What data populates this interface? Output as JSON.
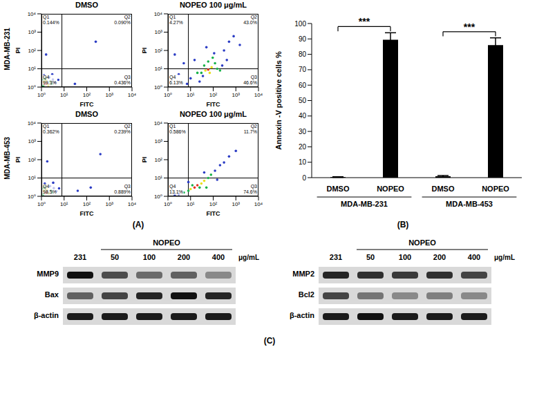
{
  "panel_labels": [
    "(A)",
    "(B)",
    "(C)"
  ],
  "flow_rows": [
    "MDA-MB-231",
    "MDA-MB-453"
  ],
  "chart_data": [
    {
      "type": "scatter",
      "title": "DMSO",
      "xlabel": "FITC",
      "ylabel": "PI",
      "log": true,
      "xlim": [
        1,
        10000
      ],
      "ylim": [
        1,
        10000
      ],
      "xticks": [
        {
          "value": 1,
          "label": "10⁰"
        },
        {
          "value": 10,
          "label": "10¹"
        },
        {
          "value": 100,
          "label": "10²"
        },
        {
          "value": 1000,
          "label": "10³"
        },
        {
          "value": 10000,
          "label": "10⁴"
        }
      ],
      "yticks": [
        {
          "value": 1,
          "label": "10⁰"
        },
        {
          "value": 10,
          "label": "10¹"
        },
        {
          "value": 100,
          "label": "10²"
        },
        {
          "value": 1000,
          "label": "10³"
        },
        {
          "value": 10000,
          "label": "10⁴"
        }
      ],
      "gate": {
        "x": 8,
        "y": 10
      },
      "quadrants": [
        {
          "name": "Q1",
          "value": 0.144,
          "label": "0.144%"
        },
        {
          "name": "Q2",
          "value": 0.09,
          "label": "0.090%"
        },
        {
          "name": "Q3",
          "value": 0.436,
          "label": "0.436%"
        },
        {
          "name": "Q4",
          "value": 99.3,
          "label": "99.3%"
        }
      ],
      "x": [
        1.4,
        1.7,
        1.3,
        2.0,
        1.6,
        2.4,
        1.2,
        2.8,
        1.5,
        3.2,
        1.2,
        2.2,
        4.0,
        1.3,
        5.5,
        3.0,
        30,
        1.6,
        250
      ],
      "y": [
        1.4,
        1.6,
        1.9,
        1.3,
        2.3,
        2.0,
        1.2,
        1.5,
        3.0,
        2.6,
        2.6,
        3.4,
        1.8,
        4.5,
        2.5,
        5.0,
        1.5,
        60,
        300
      ],
      "colors": [
        "#e8321e",
        "#e8321e",
        "#e8e020",
        "#e8e020",
        "#e8e020",
        "#19b34a",
        "#19b34a",
        "#19b34a",
        "#19b34a",
        "#2b3cc4",
        "#19b34a",
        "#2b3cc4",
        "#2b3cc4",
        "#2b3cc4",
        "#2b3cc4",
        "#2b3cc4",
        "#2b3cc4",
        "#2b3cc4",
        "#2b3cc4"
      ]
    },
    {
      "type": "scatter",
      "title": "NOPEO 100 μg/mL",
      "xlabel": "FITC",
      "ylabel": "PI",
      "log": true,
      "xlim": [
        1,
        10000
      ],
      "ylim": [
        1,
        10000
      ],
      "xticks": [
        {
          "value": 1,
          "label": "10⁰"
        },
        {
          "value": 10,
          "label": "10¹"
        },
        {
          "value": 100,
          "label": "10²"
        },
        {
          "value": 1000,
          "label": "10³"
        },
        {
          "value": 10000,
          "label": "10⁴"
        }
      ],
      "yticks": [
        {
          "value": 1,
          "label": "10⁰"
        },
        {
          "value": 10,
          "label": "10¹"
        },
        {
          "value": 100,
          "label": "10²"
        },
        {
          "value": 1000,
          "label": "10³"
        },
        {
          "value": 10000,
          "label": "10⁴"
        }
      ],
      "gate": {
        "x": 8,
        "y": 10
      },
      "quadrants": [
        {
          "name": "Q1",
          "value": 4.27,
          "label": "4.27%"
        },
        {
          "name": "Q2",
          "value": 43.0,
          "label": "43.0%"
        },
        {
          "name": "Q3",
          "value": 46.6,
          "label": "46.6%"
        },
        {
          "name": "Q4",
          "value": 6.13,
          "label": "6.13%"
        }
      ],
      "x": [
        60,
        45,
        85,
        70,
        30,
        120,
        95,
        20,
        150,
        40,
        200,
        10,
        15,
        300,
        500,
        800,
        50,
        400,
        1500,
        5,
        3,
        2,
        7,
        25,
        110,
        60,
        250,
        35
      ],
      "y": [
        9,
        8,
        12,
        6,
        6,
        20,
        40,
        6,
        10,
        15,
        8,
        3,
        30,
        100,
        300,
        600,
        150,
        30,
        200,
        20,
        5,
        60,
        1.5,
        2,
        70,
        25,
        15,
        4
      ],
      "colors": [
        "#e8321e",
        "#e8e020",
        "#e8e020",
        "#e8e020",
        "#19b34a",
        "#19b34a",
        "#19b34a",
        "#19b34a",
        "#19b34a",
        "#19b34a",
        "#19b34a",
        "#2b3cc4",
        "#2b3cc4",
        "#2b3cc4",
        "#2b3cc4",
        "#2b3cc4",
        "#2b3cc4",
        "#2b3cc4",
        "#2b3cc4",
        "#2b3cc4",
        "#2b3cc4",
        "#2b3cc4",
        "#2b3cc4",
        "#2b3cc4",
        "#2b3cc4",
        "#19b34a",
        "#2b3cc4",
        "#2b3cc4"
      ]
    },
    {
      "type": "scatter",
      "title": "DMSO",
      "xlabel": "FITC",
      "ylabel": "PI",
      "log": true,
      "xlim": [
        1,
        10000
      ],
      "ylim": [
        1,
        10000
      ],
      "xticks": [
        {
          "value": 1,
          "label": "10⁰"
        },
        {
          "value": 10,
          "label": "10¹"
        },
        {
          "value": 100,
          "label": "10²"
        },
        {
          "value": 1000,
          "label": "10³"
        },
        {
          "value": 10000,
          "label": "10⁴"
        }
      ],
      "yticks": [
        {
          "value": 1,
          "label": "10⁰"
        },
        {
          "value": 10,
          "label": "10¹"
        },
        {
          "value": 100,
          "label": "10²"
        },
        {
          "value": 1000,
          "label": "10³"
        },
        {
          "value": 10000,
          "label": "10⁴"
        }
      ],
      "gate": {
        "x": 8,
        "y": 10
      },
      "quadrants": [
        {
          "name": "Q1",
          "value": 0.362,
          "label": "0.362%"
        },
        {
          "name": "Q2",
          "value": 0.239,
          "label": "0.239%"
        },
        {
          "name": "Q3",
          "value": 0.889,
          "label": "0.889%"
        },
        {
          "name": "Q4",
          "value": 98.5,
          "label": "98.5%"
        }
      ],
      "x": [
        1.5,
        1.8,
        1.3,
        2.1,
        1.7,
        2.6,
        1.2,
        3.0,
        1.4,
        3.5,
        1.2,
        2.4,
        4.5,
        1.4,
        6.0,
        3.3,
        40,
        1.8,
        400,
        150
      ],
      "y": [
        1.5,
        1.7,
        2.0,
        1.4,
        2.4,
        2.1,
        1.3,
        1.6,
        3.2,
        2.8,
        2.7,
        3.6,
        1.9,
        5.0,
        2.7,
        5.5,
        2.0,
        80,
        200,
        3
      ],
      "colors": [
        "#e8321e",
        "#e8321e",
        "#e8e020",
        "#e8e020",
        "#e8e020",
        "#19b34a",
        "#19b34a",
        "#19b34a",
        "#19b34a",
        "#2b3cc4",
        "#19b34a",
        "#2b3cc4",
        "#2b3cc4",
        "#2b3cc4",
        "#2b3cc4",
        "#2b3cc4",
        "#2b3cc4",
        "#2b3cc4",
        "#2b3cc4",
        "#2b3cc4"
      ]
    },
    {
      "type": "scatter",
      "title": "NOPEO 100 μg/mL",
      "xlabel": "FITC",
      "ylabel": "PI",
      "log": true,
      "xlim": [
        1,
        10000
      ],
      "ylim": [
        1,
        10000
      ],
      "xticks": [
        {
          "value": 1,
          "label": "10⁰"
        },
        {
          "value": 10,
          "label": "10¹"
        },
        {
          "value": 100,
          "label": "10²"
        },
        {
          "value": 1000,
          "label": "10³"
        },
        {
          "value": 10000,
          "label": "10⁴"
        }
      ],
      "yticks": [
        {
          "value": 1,
          "label": "10⁰"
        },
        {
          "value": 10,
          "label": "10¹"
        },
        {
          "value": 100,
          "label": "10²"
        },
        {
          "value": 1000,
          "label": "10³"
        },
        {
          "value": 10000,
          "label": "10⁴"
        }
      ],
      "gate": {
        "x": 8,
        "y": 10
      },
      "quadrants": [
        {
          "name": "Q1",
          "value": 0.586,
          "label": "0.586%"
        },
        {
          "name": "Q2",
          "value": 11.7,
          "label": "11.7%"
        },
        {
          "name": "Q3",
          "value": 74.6,
          "label": "74.6%"
        },
        {
          "name": "Q4",
          "value": 13.1,
          "label": "13.1%"
        }
      ],
      "x": [
        20,
        15,
        30,
        10,
        40,
        60,
        8,
        80,
        25,
        5,
        120,
        200,
        300,
        500,
        3,
        2,
        150,
        40,
        1000,
        8,
        12,
        50
      ],
      "y": [
        4,
        3,
        5,
        2.5,
        7,
        10,
        2,
        15,
        3,
        1.6,
        25,
        50,
        70,
        150,
        1.3,
        1.2,
        8,
        20,
        300,
        6,
        4,
        3
      ],
      "colors": [
        "#e8321e",
        "#e8321e",
        "#e8e020",
        "#e8e020",
        "#e8e020",
        "#19b34a",
        "#19b34a",
        "#19b34a",
        "#19b34a",
        "#19b34a",
        "#2b3cc4",
        "#2b3cc4",
        "#2b3cc4",
        "#2b3cc4",
        "#2b3cc4",
        "#2b3cc4",
        "#2b3cc4",
        "#2b3cc4",
        "#2b3cc4",
        "#2b3cc4",
        "#19b34a",
        "#19b34a"
      ]
    },
    {
      "type": "bar",
      "ylabel": "Annexin -V positive cells %",
      "categories": [
        "DMSO",
        "NOPEO",
        "DMSO",
        "NOPEO"
      ],
      "groups": [
        {
          "label": "MDA-MB-231",
          "span": [
            0,
            1
          ]
        },
        {
          "label": "MDA-MB-453",
          "span": [
            2,
            3
          ]
        }
      ],
      "values": [
        0.4,
        89.5,
        0.9,
        86
      ],
      "errors": [
        0.2,
        4.5,
        0.5,
        4.7
      ],
      "color": "#000000",
      "ylim": [
        0,
        100
      ],
      "yticks": [
        0,
        10,
        20,
        30,
        40,
        50,
        60,
        70,
        80,
        90,
        100
      ],
      "significance": [
        {
          "from": 0,
          "to": 1,
          "label": "***"
        },
        {
          "from": 2,
          "to": 3,
          "label": "***"
        }
      ]
    }
  ],
  "western_blot": {
    "header": "NOPEO",
    "unit": "μg/mL",
    "lanes": [
      "231",
      "50",
      "100",
      "200",
      "400"
    ],
    "panels": [
      {
        "rows": [
          {
            "label": "MMP9",
            "intensity": [
              1.0,
              0.7,
              0.55,
              0.6,
              0.4
            ]
          },
          {
            "label": "Bax",
            "intensity": [
              0.6,
              0.75,
              0.9,
              1.0,
              0.9
            ]
          },
          {
            "label": "β-actin",
            "intensity": [
              0.95,
              0.95,
              0.95,
              0.95,
              0.95
            ]
          }
        ]
      },
      {
        "rows": [
          {
            "label": "MMP2",
            "intensity": [
              0.9,
              0.85,
              0.8,
              0.85,
              0.75
            ]
          },
          {
            "label": "Bcl2",
            "intensity": [
              0.75,
              0.5,
              0.4,
              0.45,
              0.4
            ]
          },
          {
            "label": "β-actin",
            "intensity": [
              0.95,
              1.0,
              0.95,
              0.95,
              0.95
            ]
          }
        ]
      }
    ]
  }
}
